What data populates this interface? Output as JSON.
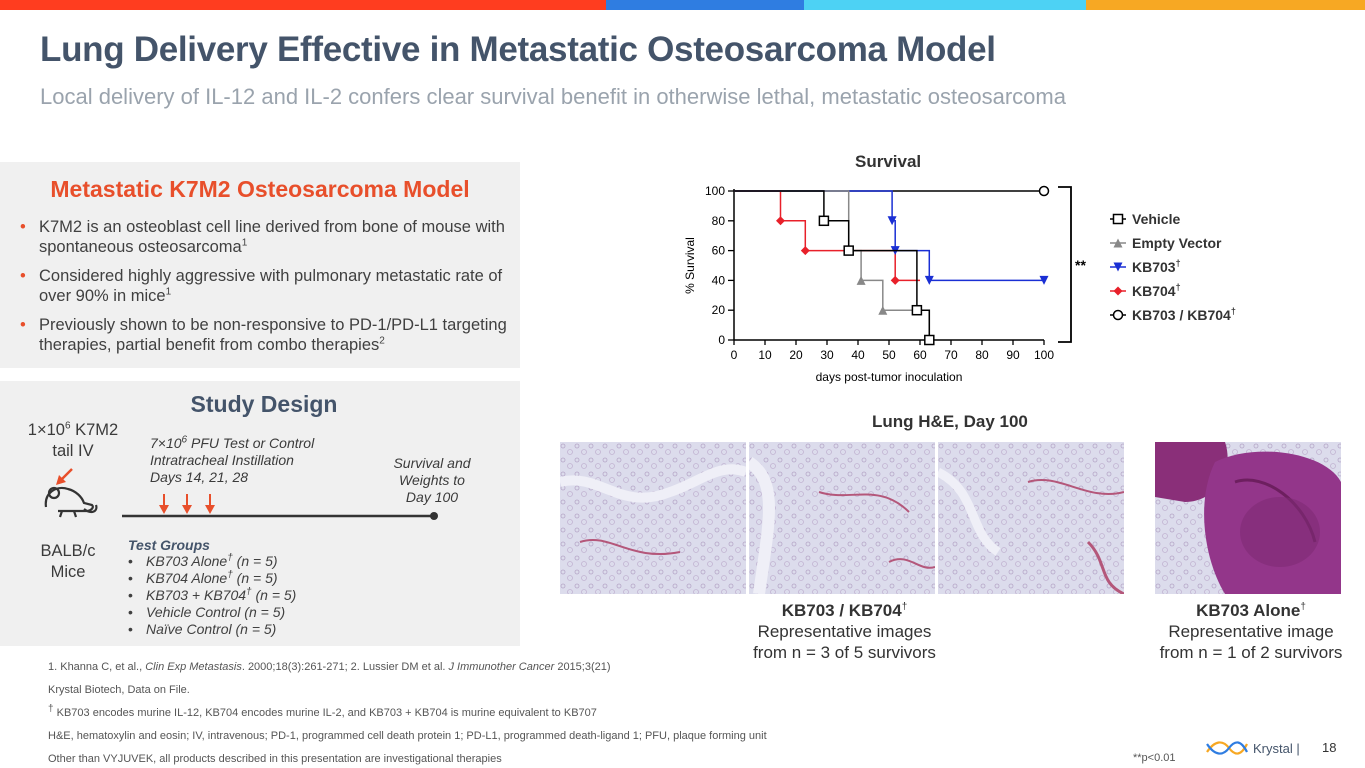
{
  "colors": {
    "orange_red": "#ff3d1f",
    "blue": "#2f7de1",
    "cyan": "#4dd2f4",
    "amber": "#f7a823",
    "accent": "#e84f2b",
    "slate": "#44546a"
  },
  "header": {
    "title": "Lung Delivery Effective in Metastatic Osteosarcoma Model",
    "subtitle": "Local delivery of IL-12 and IL-2 confers clear survival benefit in otherwise lethal, metastatic osteosarcoma"
  },
  "model": {
    "title": "Metastatic K7M2 Osteosarcoma Model",
    "bullet_symbol": "•",
    "bullets": [
      {
        "text": "K7M2 is an osteoblast cell line derived from bone of mouse with spontaneous osteosarcoma",
        "sup": "1"
      },
      {
        "text": "Considered highly aggressive with pulmonary metastatic rate of over 90% in mice",
        "sup": "1"
      },
      {
        "text": "Previously shown to be non-responsive to PD-1/PD-L1 targeting therapies, partial benefit from combo therapies",
        "sup": "2"
      }
    ]
  },
  "study": {
    "title": "Study Design",
    "k7m2_pre": "1×10",
    "k7m2_sup": "6",
    "k7m2_post": " K7M2",
    "k7m2_line2": "tail IV",
    "mice_line1": "BALB/c",
    "mice_line2": "Mice",
    "pfu_pre": "7×10",
    "pfu_sup": "6",
    "pfu_post": " PFU Test or Control",
    "pfu_line2": "Intratracheal Instillation",
    "pfu_line3": "Days 14, 21, 28",
    "survival_line1": "Survival and",
    "survival_line2": "Weights to",
    "survival_line3": "Day 100",
    "groups_title": "Test Groups",
    "group_bullet": "•",
    "groups": [
      {
        "pre": "KB703 Alone",
        "sup": "†",
        "post": " (n = 5)"
      },
      {
        "pre": "KB704 Alone",
        "sup": "†",
        "post": " (n = 5)"
      },
      {
        "pre": "KB703 + KB704",
        "sup": "†",
        "post": " (n = 5)"
      },
      {
        "pre": "Vehicle Control (n = 5)",
        "sup": "",
        "post": ""
      },
      {
        "pre": "Naïve Control (n = 5)",
        "sup": "",
        "post": ""
      }
    ]
  },
  "chart_data": {
    "type": "line",
    "title": "Survival",
    "xlabel": "days post-tumor inoculation",
    "ylabel": "% Survival",
    "xlim": [
      0,
      100
    ],
    "ylim": [
      0,
      100
    ],
    "x_ticks": [
      0,
      10,
      20,
      30,
      40,
      50,
      60,
      70,
      80,
      90,
      100
    ],
    "y_ticks": [
      0,
      20,
      40,
      60,
      80,
      100
    ],
    "significance": "**",
    "series": [
      {
        "name": "Vehicle",
        "sup": "",
        "color": "#000000",
        "marker": "square-open",
        "x": [
          0,
          29,
          29,
          37,
          37,
          59,
          59,
          63,
          63
        ],
        "y": [
          100,
          100,
          80,
          80,
          60,
          60,
          20,
          20,
          0
        ],
        "marker_points": [
          [
            29,
            80
          ],
          [
            37,
            60
          ],
          [
            59,
            20
          ],
          [
            63,
            0
          ]
        ]
      },
      {
        "name": "Empty Vector",
        "sup": "",
        "color": "#888888",
        "marker": "triangle-up",
        "x": [
          0,
          37,
          37,
          41,
          41,
          48,
          48,
          59,
          59,
          63,
          63
        ],
        "y": [
          100,
          100,
          60,
          60,
          40,
          40,
          20,
          20,
          20,
          20,
          0
        ],
        "marker_points": [
          [
            41,
            40
          ],
          [
            48,
            20
          ]
        ]
      },
      {
        "name": "KB703",
        "sup": "†",
        "color": "#1a2fd4",
        "marker": "triangle-down",
        "x": [
          0,
          51,
          51,
          52,
          52,
          63,
          63,
          100
        ],
        "y": [
          100,
          100,
          80,
          80,
          60,
          60,
          40,
          40
        ],
        "marker_points": [
          [
            51,
            80
          ],
          [
            52,
            60
          ],
          [
            63,
            40
          ],
          [
            100,
            40
          ]
        ]
      },
      {
        "name": "KB704",
        "sup": "†",
        "color": "#e8202a",
        "marker": "diamond",
        "x": [
          0,
          15,
          15,
          23,
          23,
          52,
          52,
          60
        ],
        "y": [
          100,
          100,
          80,
          80,
          60,
          60,
          40,
          40
        ],
        "marker_points": [
          [
            15,
            80
          ],
          [
            23,
            60
          ],
          [
            52,
            40
          ]
        ]
      },
      {
        "name": "KB703 / KB704",
        "sup": "†",
        "color": "#000000",
        "marker": "circle-open",
        "x": [
          0,
          100
        ],
        "y": [
          100,
          100
        ],
        "marker_points": [
          [
            100,
            100
          ]
        ]
      }
    ]
  },
  "histology": {
    "title": "Lung H&E, Day 100",
    "combo_caption_title": "KB703 / KB704",
    "combo_caption_sup": "†",
    "combo_caption_line1": "Representative images",
    "combo_caption_line2": "from n = 3 of 5 survivors",
    "alone_caption_title": "KB703 Alone",
    "alone_caption_sup": "†",
    "alone_caption_line1": "Representative image",
    "alone_caption_line2": "from n = 1 of 2 survivors"
  },
  "footnotes": {
    "ref1_a": "1. Khanna C, et al., ",
    "ref1_journal": "Clin Exp Metastasis",
    "ref1_b": ". 2000;18(3):261-271;  2. Lussier DM et al. ",
    "ref2_journal": "J Immunother Cancer",
    "ref2_b": " 2015;3(21)",
    "line2": "Krystal Biotech, Data on File.",
    "dagger": "†",
    "line3": " KB703 encodes murine IL-12, KB704 encodes murine IL-2, and KB703 + KB704 is murine equivalent to KB707",
    "line4": "H&E, hematoxylin and eosin; IV, intravenous; PD-1, programmed cell death protein 1; PD-L1, programmed death-ligand 1; PFU, plaque forming unit",
    "line5": "Other than VYJUVEK, all products described in this presentation are investigational therapies"
  },
  "p_value_note": "**p<0.01",
  "brand": {
    "name": "Krystal |",
    "page": "18"
  }
}
